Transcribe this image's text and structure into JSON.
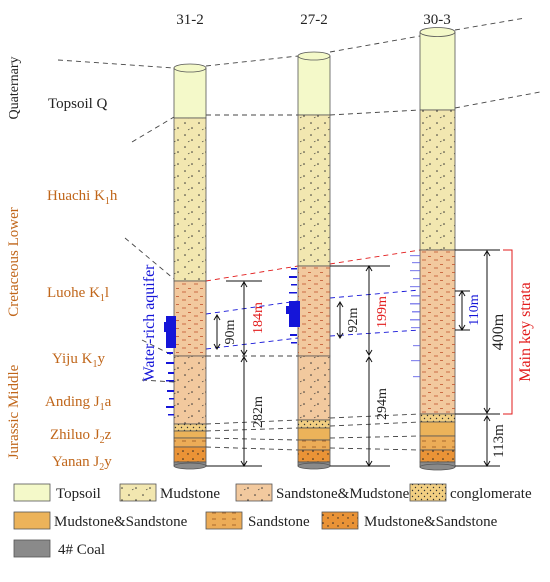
{
  "colors": {
    "topsoil": "#f4f9c9",
    "mudstone": "#f2e7b0",
    "sandstone_mudstone": "#f2c99e",
    "conglomerate": "#f2cf82",
    "mudstone_sandstone_light": "#ecb35a",
    "sandstone": "#ecac57",
    "mudstone_sandstone_dark": "#ea9336",
    "coal": "#8a8a8a",
    "aquifer": "#1515d8",
    "key_strata": "#e21b1b",
    "formation_text": "#c0661a"
  },
  "boreholes": [
    {
      "id": "31-2"
    },
    {
      "id": "27-2"
    },
    {
      "id": "30-3"
    }
  ],
  "eras": {
    "quaternary": "Quaternary",
    "cretaceous": "Cretaceous Lower",
    "jurassic": "Jurassic Middle"
  },
  "formations": {
    "topsoil": "Topsoil Q",
    "huachi": {
      "name": "Huachi K",
      "sub": "1",
      "suffix": "h"
    },
    "luohe": {
      "name": "Luohe K",
      "sub": "1",
      "suffix": "l"
    },
    "yiju": {
      "name": "Yiju K",
      "sub": "1",
      "suffix": "y"
    },
    "anding": {
      "name": "Anding J",
      "sub": "1",
      "suffix": "a"
    },
    "zhiluo": {
      "name": "Zhiluo J",
      "sub": "2",
      "suffix": "z"
    },
    "yanan": {
      "name": "Yanan J",
      "sub": "2",
      "suffix": "y"
    }
  },
  "annotations": {
    "aquifer_label": "Water-rich aquifer",
    "key_strata_label": "Main key strata",
    "measures": {
      "b1_luohe": "184m",
      "b1_aquifer": "90m",
      "b1_depth": "282m",
      "b2_luohe": "199m",
      "b2_aquifer": "92m",
      "b2_depth": "294m",
      "b3_aquifer": "110m",
      "b3_key": "400m",
      "b3_depth": "113m"
    }
  },
  "legend": [
    {
      "label": "Topsoil",
      "fill": "topsoil"
    },
    {
      "label": "Mudstone",
      "fill": "mudstone"
    },
    {
      "label": "Sandstone&Mudstone",
      "fill": "sandstone_mudstone"
    },
    {
      "label": "conglomerate",
      "fill": "conglomerate"
    },
    {
      "label": "Mudstone&Sandstone",
      "fill": "mudstone_sandstone_light"
    },
    {
      "label": "Sandstone",
      "fill": "sandstone"
    },
    {
      "label": "Mudstone&Sandstone",
      "fill": "mudstone_sandstone_dark"
    },
    {
      "label": "4# Coal",
      "fill": "coal"
    }
  ]
}
